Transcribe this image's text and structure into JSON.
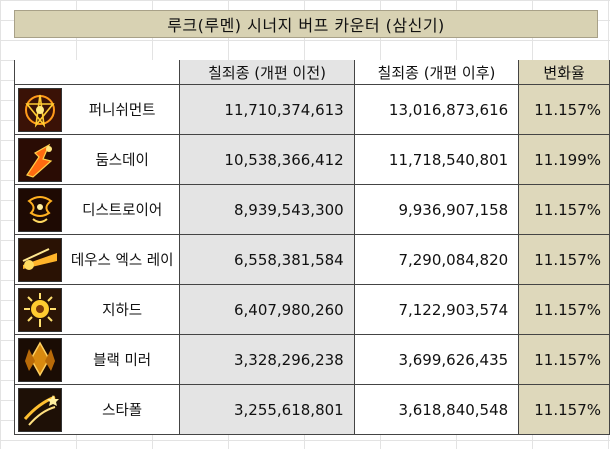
{
  "title": "루크(루멘) 시너지 버프 카운터 (삼신기)",
  "headers": {
    "before": "칠죄종 (개편 이전)",
    "after": "칠죄종 (개편 이후)",
    "rate": "변화율"
  },
  "rows": [
    {
      "name": "퍼니쉬먼트",
      "before": "11,710,374,613",
      "after": "13,016,873,616",
      "rate": "11.157%",
      "icon": "punishment-skill-icon"
    },
    {
      "name": "둠스데이",
      "before": "10,538,366,412",
      "after": "11,718,540,801",
      "rate": "11.199%",
      "icon": "doomsday-skill-icon"
    },
    {
      "name": "디스트로이어",
      "before": "8,939,543,300",
      "after": "9,936,907,158",
      "rate": "11.157%",
      "icon": "destroyer-skill-icon"
    },
    {
      "name": "데우스 엑스 레이",
      "before": "6,558,381,584",
      "after": "7,290,084,820",
      "rate": "11.157%",
      "icon": "deus-ex-ray-skill-icon"
    },
    {
      "name": "지하드",
      "before": "6,407,980,260",
      "after": "7,122,903,574",
      "rate": "11.157%",
      "icon": "jihad-skill-icon"
    },
    {
      "name": "블랙 미러",
      "before": "3,328,296,238",
      "after": "3,699,626,435",
      "rate": "11.157%",
      "icon": "black-mirror-skill-icon"
    },
    {
      "name": "스타폴",
      "before": "3,255,618,801",
      "after": "3,618,840,548",
      "rate": "11.157%",
      "icon": "starfall-skill-icon"
    }
  ]
}
